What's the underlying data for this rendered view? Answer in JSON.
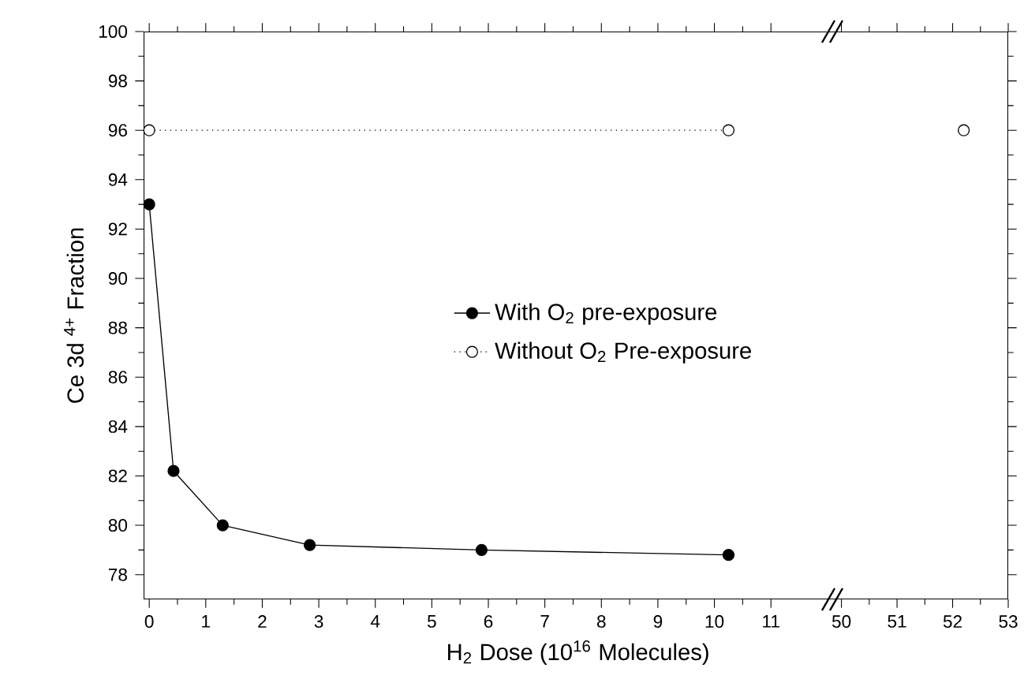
{
  "chart_data": [
    {
      "type": "line",
      "xlabel": "H$_{2}$ Dose (10$^{16}$ Molecules)",
      "ylabel": "Ce 3d $^{4+}$ Fraction",
      "xlim": [
        -0.1,
        12.1
      ],
      "xticks": [
        0,
        1,
        2,
        3,
        4,
        5,
        6,
        7,
        8,
        9,
        10,
        11
      ],
      "ylim": [
        77,
        100
      ],
      "yticks": [
        78,
        80,
        82,
        84,
        86,
        88,
        90,
        92,
        94,
        96,
        98,
        100
      ],
      "legend": "right",
      "series": [
        {
          "name": "With O$_{2}$ pre-exposure",
          "color": "#000000",
          "marker": "circle",
          "line_style": "solid",
          "x": [
            0,
            0.43,
            1.3,
            2.84,
            5.88,
            10.25
          ],
          "values": [
            93.0,
            82.2,
            80.0,
            79.2,
            79.0,
            78.8
          ]
        },
        {
          "name": "Without O$_{2}$ Pre-exposure",
          "color": "#000000",
          "marker": "open circle",
          "line_style": "dotted",
          "x": [
            0,
            10.25
          ],
          "values": [
            96,
            96
          ]
        }
      ]
    },
    {
      "type": "line",
      "xlim": [
        49.85,
        53
      ],
      "xticks": [
        50,
        51,
        52,
        53
      ],
      "ylim": [
        77,
        100
      ],
      "yticks": [
        78,
        80,
        82,
        84,
        86,
        88,
        90,
        92,
        94,
        96,
        98,
        100
      ],
      "tick_labels": "x",
      "series": [
        {
          "color": "#000000",
          "marker": "open circle",
          "line_style": "dotted",
          "x": [
            52.2
          ],
          "values": [
            96
          ]
        }
      ]
    }
  ]
}
